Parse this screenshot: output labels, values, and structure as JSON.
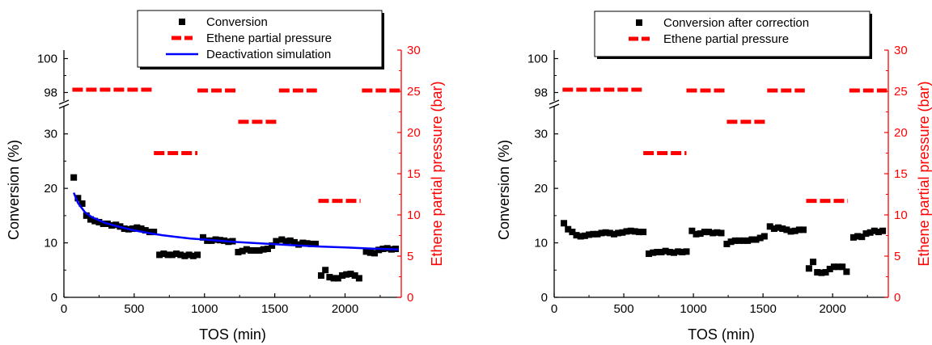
{
  "colors": {
    "axis_left": "#000000",
    "axis_right": "#ff0000",
    "conversion_marker": "#000000",
    "pressure": "#ff0000",
    "simulation": "#0000ff"
  },
  "chart_data": [
    {
      "type": "scatter",
      "xlabel": "TOS (min)",
      "ylabel": "Conversion (%)",
      "y2label": "Ethene partial pressure (bar)",
      "xlim": [
        0,
        2400
      ],
      "xticks": [
        "0",
        "500",
        "1000",
        "1500",
        "2000"
      ],
      "ylim_lower": [
        0,
        35
      ],
      "yticks_lower": [
        "0",
        "10",
        "20",
        "30"
      ],
      "ylim_upper": [
        97.5,
        100.5
      ],
      "yticks_upper": [
        "98",
        "100"
      ],
      "y2lim": [
        0,
        30
      ],
      "y2ticks": [
        "0",
        "5",
        "10",
        "15",
        "20",
        "25",
        "30"
      ],
      "legend": {
        "position": "top-center",
        "entries": [
          "Conversion",
          "Ethene partial pressure",
          "Deactivation simulation"
        ]
      },
      "series": [
        {
          "name": "Conversion",
          "marker": "square",
          "axis": "left",
          "x": [
            70,
            100,
            130,
            160,
            190,
            220,
            250,
            280,
            310,
            340,
            370,
            400,
            430,
            460,
            490,
            520,
            550,
            580,
            610,
            640,
            680,
            710,
            740,
            770,
            800,
            830,
            860,
            890,
            920,
            950,
            990,
            1020,
            1050,
            1080,
            1110,
            1140,
            1170,
            1200,
            1240,
            1270,
            1300,
            1330,
            1360,
            1390,
            1420,
            1450,
            1480,
            1510,
            1550,
            1580,
            1610,
            1640,
            1670,
            1700,
            1730,
            1760,
            1790,
            1830,
            1860,
            1890,
            1920,
            1950,
            1980,
            2010,
            2040,
            2070,
            2100,
            2150,
            2180,
            2210,
            2240,
            2270,
            2300,
            2330,
            2360
          ],
          "y": [
            22,
            18.2,
            17.2,
            15,
            14.3,
            14,
            13.8,
            13.5,
            13.5,
            13.2,
            13.3,
            13,
            12.6,
            12.5,
            12.6,
            12.8,
            12.6,
            12.3,
            12,
            12,
            7.8,
            8,
            7.8,
            7.8,
            8,
            7.8,
            7.6,
            7.8,
            7.6,
            7.8,
            11,
            10.4,
            10.4,
            10.6,
            10.5,
            10.4,
            10.2,
            10.3,
            8.3,
            8.5,
            8.8,
            8.6,
            8.6,
            8.6,
            8.8,
            8.9,
            9.5,
            10.3,
            10.6,
            10.3,
            10.4,
            10.1,
            9.7,
            10,
            9.9,
            9.8,
            9.8,
            4,
            5,
            3.7,
            3.5,
            3.5,
            4,
            4.2,
            4.3,
            4,
            3.5,
            8.4,
            8.2,
            8.1,
            8.7,
            8.9,
            9,
            8.8,
            8.9
          ]
        },
        {
          "name": "Ethene partial pressure",
          "axis": "right",
          "segments": [
            {
              "x": [
                60,
                630
              ],
              "y": 25.2
            },
            {
              "x": [
                640,
                950
              ],
              "y": 17.5
            },
            {
              "x": [
                950,
                1230
              ],
              "y": 25.1
            },
            {
              "x": [
                1240,
                1530
              ],
              "y": 21.3
            },
            {
              "x": [
                1530,
                1800
              ],
              "y": 25.1
            },
            {
              "x": [
                1810,
                2110
              ],
              "y": 11.7
            },
            {
              "x": [
                2120,
                2390
              ],
              "y": 25.1
            }
          ]
        },
        {
          "name": "Deactivation simulation",
          "axis": "left",
          "x": [
            70,
            100,
            150,
            200,
            300,
            400,
            500,
            600,
            700,
            800,
            900,
            1000,
            1200,
            1400,
            1600,
            1800,
            2000,
            2200,
            2380
          ],
          "y": [
            19.2,
            17.3,
            15.6,
            14.7,
            13.6,
            12.9,
            12.3,
            11.8,
            11.4,
            11.1,
            10.8,
            10.6,
            10.2,
            9.9,
            9.6,
            9.35,
            9.15,
            8.95,
            8.8
          ]
        }
      ]
    },
    {
      "type": "scatter",
      "xlabel": "TOS (min)",
      "ylabel": "Conversion (%)",
      "y2label": "Ethene partial pressure (bar)",
      "xlim": [
        0,
        2400
      ],
      "xticks": [
        "0",
        "500",
        "1000",
        "1500",
        "2000"
      ],
      "ylim_lower": [
        0,
        35
      ],
      "yticks_lower": [
        "0",
        "10",
        "20",
        "30"
      ],
      "ylim_upper": [
        97.5,
        100.5
      ],
      "yticks_upper": [
        "98",
        "100"
      ],
      "y2lim": [
        0,
        30
      ],
      "y2ticks": [
        "0",
        "5",
        "10",
        "15",
        "20",
        "25",
        "30"
      ],
      "legend": {
        "position": "top-center",
        "entries": [
          "Conversion after correction",
          "Ethene partial pressure"
        ]
      },
      "series": [
        {
          "name": "Conversion after correction",
          "marker": "square",
          "axis": "left",
          "x": [
            70,
            100,
            130,
            160,
            190,
            220,
            250,
            280,
            310,
            340,
            370,
            400,
            430,
            460,
            490,
            520,
            550,
            580,
            610,
            640,
            680,
            710,
            740,
            770,
            800,
            830,
            860,
            890,
            920,
            950,
            990,
            1020,
            1050,
            1080,
            1110,
            1140,
            1170,
            1200,
            1240,
            1270,
            1300,
            1330,
            1360,
            1390,
            1420,
            1450,
            1480,
            1510,
            1550,
            1580,
            1610,
            1640,
            1670,
            1700,
            1730,
            1760,
            1790,
            1830,
            1860,
            1890,
            1920,
            1950,
            1980,
            2010,
            2040,
            2070,
            2100,
            2150,
            2180,
            2210,
            2240,
            2270,
            2300,
            2330,
            2360
          ],
          "y": [
            13.6,
            12.5,
            12,
            11.4,
            11.2,
            11.3,
            11.5,
            11.6,
            11.6,
            11.8,
            11.9,
            11.8,
            11.6,
            11.8,
            11.9,
            12.1,
            12.2,
            12.1,
            12,
            12,
            8,
            8.2,
            8.3,
            8.3,
            8.5,
            8.3,
            8.2,
            8.4,
            8.3,
            8.4,
            12.2,
            11.6,
            11.7,
            12,
            12,
            11.8,
            11.9,
            11.8,
            9.8,
            10.2,
            10.4,
            10.4,
            10.4,
            10.4,
            10.6,
            10.6,
            10.9,
            11.2,
            13,
            12.6,
            12.8,
            12.6,
            12.4,
            12.1,
            12.2,
            12.4,
            12.4,
            5.3,
            6.5,
            4.6,
            4.5,
            4.6,
            5.2,
            5.6,
            5.6,
            5.6,
            4.7,
            11,
            11.2,
            11.1,
            11.7,
            11.9,
            12.2,
            12,
            12.2
          ]
        },
        {
          "name": "Ethene partial pressure",
          "axis": "right",
          "segments": [
            {
              "x": [
                60,
                630
              ],
              "y": 25.2
            },
            {
              "x": [
                640,
                950
              ],
              "y": 17.5
            },
            {
              "x": [
                950,
                1230
              ],
              "y": 25.1
            },
            {
              "x": [
                1240,
                1530
              ],
              "y": 21.3
            },
            {
              "x": [
                1530,
                1800
              ],
              "y": 25.1
            },
            {
              "x": [
                1810,
                2110
              ],
              "y": 11.7
            },
            {
              "x": [
                2120,
                2390
              ],
              "y": 25.1
            }
          ]
        }
      ]
    }
  ]
}
